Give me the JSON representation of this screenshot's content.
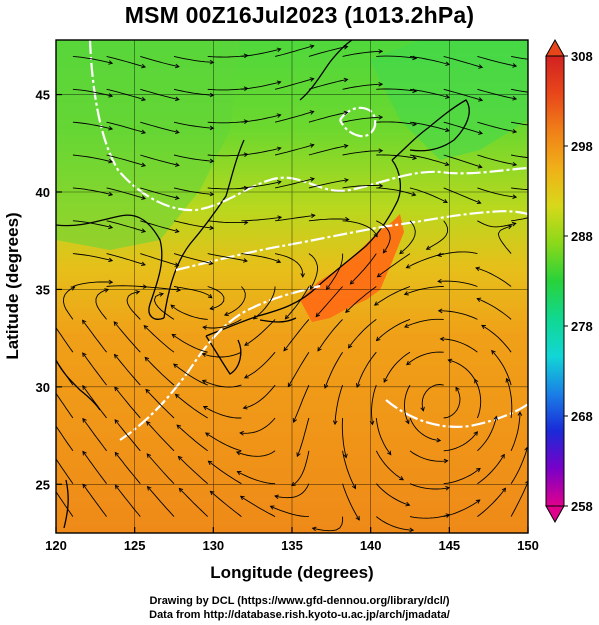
{
  "title": "MSM 00Z16Jul2023 (1013.2hPa)",
  "map": {
    "xlabel": "Longitude (degrees)",
    "ylabel": "Latitude  (degrees)",
    "lon_range": [
      120,
      150
    ],
    "lat_range": [
      22.5,
      47.8
    ],
    "lon_ticks": [
      "120",
      "125",
      "130",
      "135",
      "140",
      "145",
      "150"
    ],
    "lat_ticks": [
      "25",
      "30",
      "35",
      "40",
      "45"
    ],
    "lon_tick_values": [
      120,
      125,
      130,
      135,
      140,
      145,
      150
    ],
    "lat_tick_values": [
      25,
      30,
      35,
      40,
      45
    ],
    "field": "temperature (K) shaded, surface streamlines, white 0°C-isotherm-style contours",
    "background_colors": {
      "north": "#55d93a",
      "mid": "#c6d81a",
      "south": "#f08a18",
      "hot_land": "#ff5a10"
    }
  },
  "colorbar": {
    "ticks": [
      "308",
      "298",
      "288",
      "278",
      "268",
      "258"
    ],
    "tick_values": [
      308,
      298,
      288,
      278,
      268,
      258
    ],
    "range": [
      258,
      308
    ],
    "stops": [
      "#e1008c",
      "#7a00c8",
      "#1a2ad8",
      "#1a80e6",
      "#12d6d6",
      "#10d890",
      "#28d23a",
      "#8ad81a",
      "#d8d81a",
      "#f0b018",
      "#f08018",
      "#e8461a",
      "#d22222"
    ],
    "extend": "both"
  },
  "footer": {
    "line1": "Drawing by DCL (https://www.gfd-dennou.org/library/dcl/)",
    "line2": "Data from http://database.rish.kyoto-u.ac.jp/arch/jmadata/"
  }
}
